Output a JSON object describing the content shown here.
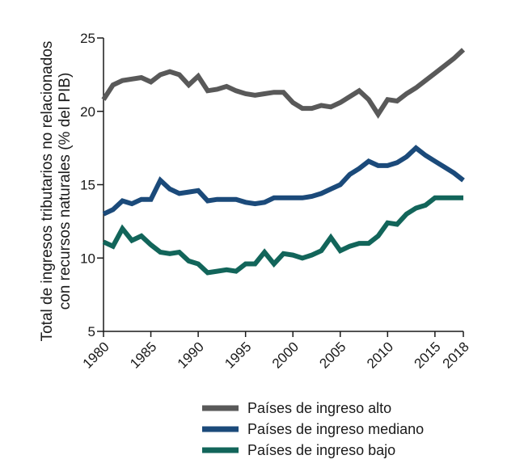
{
  "chart_data": {
    "type": "line",
    "title": "",
    "xlabel": "",
    "ylabel_lines": [
      "Total de ingresos tributarios no relacionados",
      "con recursos naturales (% del PIB)"
    ],
    "xlim": [
      1980,
      2018
    ],
    "ylim": [
      5,
      25
    ],
    "xticks": [
      1980,
      1985,
      1990,
      1995,
      2000,
      2005,
      2010,
      2015,
      2018
    ],
    "xtick_labels": [
      "1980",
      "1985",
      "1990",
      "1995",
      "2000",
      "2005",
      "2010",
      "2015",
      "2018"
    ],
    "yticks": [
      5,
      10,
      15,
      20,
      25
    ],
    "ytick_labels": [
      "5",
      "10",
      "15",
      "20",
      "25"
    ],
    "grid": false,
    "legend_position": "bottom",
    "x": [
      1980,
      1981,
      1982,
      1983,
      1984,
      1985,
      1986,
      1987,
      1988,
      1989,
      1990,
      1991,
      1992,
      1993,
      1994,
      1995,
      1996,
      1997,
      1998,
      1999,
      2000,
      2001,
      2002,
      2003,
      2004,
      2005,
      2006,
      2007,
      2008,
      2009,
      2010,
      2011,
      2012,
      2013,
      2014,
      2015,
      2016,
      2017,
      2018
    ],
    "series": [
      {
        "name": "Países de ingreso alto",
        "color": "#595959",
        "values": [
          20.8,
          21.8,
          22.1,
          22.2,
          22.3,
          22.0,
          22.5,
          22.7,
          22.5,
          21.8,
          22.4,
          21.4,
          21.5,
          21.7,
          21.4,
          21.2,
          21.1,
          21.2,
          21.3,
          21.3,
          20.6,
          20.2,
          20.2,
          20.4,
          20.3,
          20.6,
          21.0,
          21.4,
          20.8,
          19.8,
          20.8,
          20.7,
          21.2,
          21.6,
          22.1,
          22.6,
          23.1,
          23.6,
          24.2
        ]
      },
      {
        "name": "Países de ingreso mediano",
        "color": "#1b4a7a",
        "values": [
          13.0,
          13.3,
          13.9,
          13.7,
          14.0,
          14.0,
          15.3,
          14.7,
          14.4,
          14.5,
          14.6,
          13.9,
          14.0,
          14.0,
          14.0,
          13.8,
          13.7,
          13.8,
          14.1,
          14.1,
          14.1,
          14.1,
          14.2,
          14.4,
          14.7,
          15.0,
          15.7,
          16.1,
          16.6,
          16.3,
          16.3,
          16.5,
          16.9,
          17.5,
          17.0,
          16.6,
          16.2,
          15.8,
          15.3
        ]
      },
      {
        "name": "Países de ingreso bajo",
        "color": "#12655a",
        "values": [
          11.1,
          10.8,
          12.0,
          11.2,
          11.5,
          10.9,
          10.4,
          10.3,
          10.4,
          9.8,
          9.6,
          9.0,
          9.1,
          9.2,
          9.1,
          9.6,
          9.6,
          10.4,
          9.6,
          10.3,
          10.2,
          10.0,
          10.2,
          10.5,
          11.4,
          10.5,
          10.8,
          11.0,
          11.0,
          11.5,
          12.4,
          12.3,
          13.0,
          13.4,
          13.6,
          14.1,
          14.1,
          14.1,
          14.1
        ]
      }
    ]
  }
}
